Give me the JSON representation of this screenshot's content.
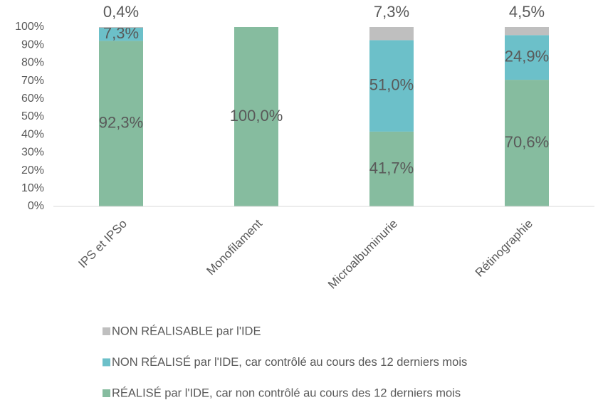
{
  "chart_data": {
    "type": "stacked_bar",
    "categories": [
      "IPS et IPSo",
      "Monofilament",
      "Microalbuminurie",
      "Rétinographie"
    ],
    "series": [
      {
        "name": "RÉALISÉ par l'IDE, car non contrôlé au cours des 12 derniers mois",
        "color": "#86bc9f",
        "values": [
          92.3,
          100.0,
          41.7,
          70.6
        ],
        "value_labels": [
          "92,3%",
          "100,0%",
          "41,7%",
          "70,6%"
        ]
      },
      {
        "name": "NON RÉALISÉ par l'IDE, car contrôlé au cours des 12 derniers mois",
        "color": "#6cc0c9",
        "values": [
          7.3,
          null,
          51.0,
          24.9
        ],
        "value_labels": [
          "7,3%",
          null,
          "51,0%",
          "24,9%"
        ]
      },
      {
        "name": "NON RÉALISABLE par l'IDE",
        "color": "#bfbfbf",
        "values": [
          0.4,
          null,
          7.3,
          4.5
        ],
        "value_labels": [
          "0,4%",
          null,
          "7,3%",
          "4,5%"
        ]
      }
    ],
    "ylim": [
      0,
      100
    ],
    "yticks": [
      {
        "value": 0,
        "label": "0%"
      },
      {
        "value": 10,
        "label": "10%"
      },
      {
        "value": 20,
        "label": "20%"
      },
      {
        "value": 30,
        "label": "30%"
      },
      {
        "value": 40,
        "label": "40%"
      },
      {
        "value": 50,
        "label": "50%"
      },
      {
        "value": 60,
        "label": "60%"
      },
      {
        "value": 70,
        "label": "70%"
      },
      {
        "value": 80,
        "label": "80%"
      },
      {
        "value": 90,
        "label": "90%"
      },
      {
        "value": 100,
        "label": "100%"
      }
    ],
    "grid": false,
    "legend": "bottom"
  }
}
